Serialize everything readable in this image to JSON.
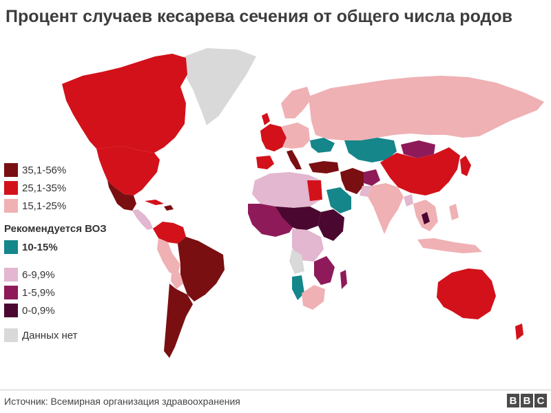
{
  "title": "Процент случаев кесарева сечения от общего числа родов",
  "source": "Источник: Всемирная организация здравоохранения",
  "logo": [
    "B",
    "B",
    "C"
  ],
  "colors": {
    "c35_56": "#7a0f12",
    "c25_35": "#d3111a",
    "c15_25": "#efb1b4",
    "who": "#15868a",
    "c6_9": "#e2b7cf",
    "c1_5": "#8f1a5a",
    "c0_09": "#4a0830",
    "nodata": "#d9d9d9"
  },
  "legend": {
    "items": [
      {
        "key": "c35_56",
        "label": "35,1-56%"
      },
      {
        "key": "c25_35",
        "label": "25,1-35%"
      },
      {
        "key": "c15_25",
        "label": "15,1-25%"
      }
    ],
    "who_heading": "Рекомендуется ВОЗ",
    "who_item": {
      "key": "who",
      "label": "10-15%"
    },
    "low_items": [
      {
        "key": "c6_9",
        "label": "6-9,9%"
      },
      {
        "key": "c1_5",
        "label": "1-5,9%"
      },
      {
        "key": "c0_09",
        "label": "0-0,9%"
      }
    ],
    "nodata_item": {
      "key": "nodata",
      "label": "Данных нет"
    }
  }
}
